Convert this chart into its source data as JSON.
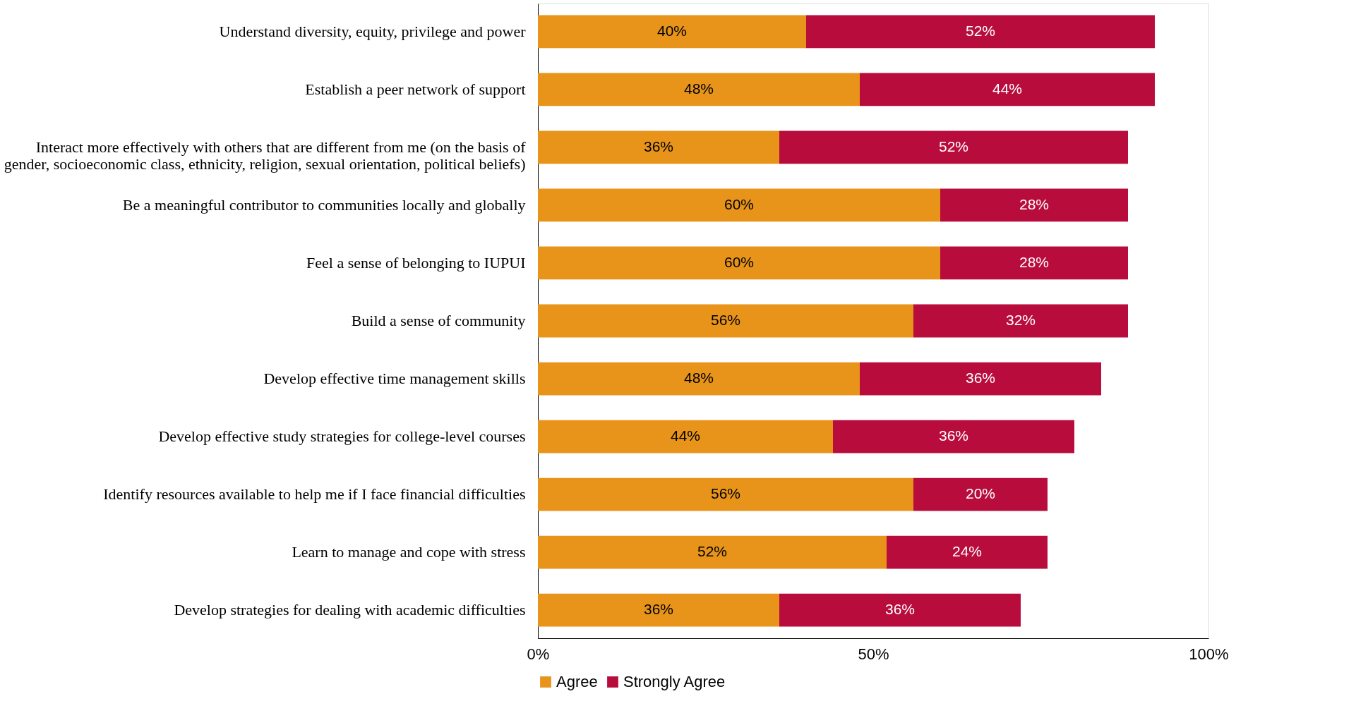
{
  "chart_data": {
    "type": "bar",
    "orientation": "horizontal",
    "stacked": true,
    "categories": [
      "Understand diversity, equity, privilege and power",
      "Establish a peer network of support",
      "Interact more effectively with others that are different from me (on the basis of gender, socioeconomic class, ethnicity, religion, sexual orientation, political beliefs)",
      "Be a meaningful contributor to communities locally and globally",
      "Feel a sense of belonging to IUPUI",
      "Build a sense of community",
      "Develop effective time management skills",
      "Develop effective study strategies for college-level courses",
      "Identify resources available to help me if I face financial difficulties",
      "Learn to manage and cope with stress",
      "Develop strategies for dealing with academic difficulties"
    ],
    "series": [
      {
        "name": "Agree",
        "color": "#e8941b",
        "values": [
          40,
          48,
          36,
          60,
          60,
          56,
          48,
          44,
          56,
          52,
          36
        ],
        "value_labels": [
          "40%",
          "48%",
          "36%",
          "60%",
          "60%",
          "56%",
          "48%",
          "44%",
          "56%",
          "52%",
          "36%"
        ]
      },
      {
        "name": "Strongly Agree",
        "color": "#b80d3c",
        "values": [
          52,
          44,
          52,
          28,
          28,
          32,
          36,
          36,
          20,
          24,
          36
        ],
        "value_labels": [
          "52%",
          "44%",
          "52%",
          "28%",
          "28%",
          "32%",
          "36%",
          "36%",
          "20%",
          "24%",
          "36%"
        ]
      }
    ],
    "xlim": [
      0,
      100
    ],
    "xticks": [
      {
        "value": 0,
        "label": "0%"
      },
      {
        "value": 50,
        "label": "50%"
      },
      {
        "value": 100,
        "label": "100%"
      }
    ],
    "grid": false,
    "legend": "bottom"
  }
}
